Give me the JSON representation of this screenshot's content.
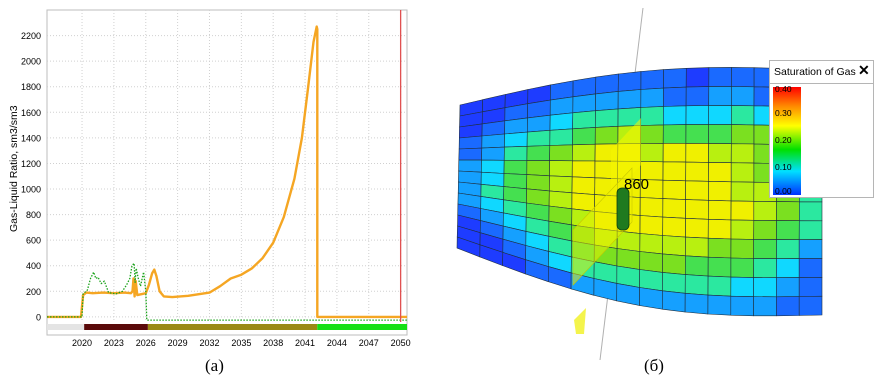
{
  "chart_data": {
    "type": "line",
    "ylabel": "Gas-Liquid Ratio, sm3/sm3",
    "xlabel": "",
    "title": "",
    "x_ticks": [
      "2020",
      "2023",
      "2026",
      "2029",
      "2032",
      "2035",
      "2038",
      "2041",
      "2044",
      "2047",
      "2050"
    ],
    "y_ticks": [
      "0",
      "200",
      "400",
      "600",
      "800",
      "1000",
      "1200",
      "1400",
      "1600",
      "1800",
      "2000",
      "2200"
    ],
    "xlim": [
      2016.7,
      2050.6
    ],
    "ylim": [
      -40,
      2400
    ],
    "grid": true,
    "series": [
      {
        "color": "#f5a623",
        "style": "solid",
        "points": [
          [
            2016.7,
            0
          ],
          [
            2019.9,
            0
          ],
          [
            2020.1,
            170
          ],
          [
            2020.4,
            190
          ],
          [
            2021,
            185
          ],
          [
            2022,
            190
          ],
          [
            2023,
            185
          ],
          [
            2024,
            190
          ],
          [
            2024.6,
            185
          ],
          [
            2024.75,
            200
          ],
          [
            2024.85,
            300
          ],
          [
            2024.95,
            160
          ],
          [
            2025.05,
            280
          ],
          [
            2025.2,
            170
          ],
          [
            2026,
            185
          ],
          [
            2026.3,
            250
          ],
          [
            2026.6,
            340
          ],
          [
            2026.8,
            370
          ],
          [
            2027,
            320
          ],
          [
            2027.3,
            200
          ],
          [
            2027.7,
            160
          ],
          [
            2028.5,
            155
          ],
          [
            2030,
            165
          ],
          [
            2032,
            190
          ],
          [
            2033,
            240
          ],
          [
            2034,
            300
          ],
          [
            2035,
            330
          ],
          [
            2036,
            380
          ],
          [
            2037,
            460
          ],
          [
            2038,
            580
          ],
          [
            2039,
            780
          ],
          [
            2040,
            1080
          ],
          [
            2040.7,
            1400
          ],
          [
            2041.3,
            1800
          ],
          [
            2041.8,
            2150
          ],
          [
            2042.1,
            2270
          ],
          [
            2042.15,
            2250
          ],
          [
            2042.15,
            0
          ],
          [
            2050.6,
            0
          ]
        ]
      },
      {
        "color": "#1aa31a",
        "style": "dotted",
        "points": [
          [
            2016.7,
            0
          ],
          [
            2020.0,
            0
          ],
          [
            2020.1,
            180
          ],
          [
            2020.5,
            210
          ],
          [
            2020.8,
            300
          ],
          [
            2021.1,
            350
          ],
          [
            2021.3,
            300
          ],
          [
            2021.5,
            310
          ],
          [
            2021.8,
            260
          ],
          [
            2022.1,
            280
          ],
          [
            2022.5,
            190
          ],
          [
            2023.2,
            180
          ],
          [
            2023.8,
            200
          ],
          [
            2024.2,
            250
          ],
          [
            2024.5,
            300
          ],
          [
            2024.7,
            400
          ],
          [
            2024.9,
            420
          ],
          [
            2025.0,
            270
          ],
          [
            2025.1,
            380
          ],
          [
            2025.3,
            300
          ],
          [
            2025.5,
            240
          ],
          [
            2025.8,
            350
          ],
          [
            2026.0,
            200
          ],
          [
            2026.1,
            -25
          ],
          [
            2050.6,
            -25
          ]
        ]
      }
    ],
    "timeline_segments": [
      {
        "from": 2016.7,
        "to": 2020.2,
        "color": "#e4e4e4"
      },
      {
        "from": 2020.2,
        "to": 2026.2,
        "color": "#5a0a0a"
      },
      {
        "from": 2026.2,
        "to": 2042.15,
        "color": "#9a8a14"
      },
      {
        "from": 2042.15,
        "to": 2050.6,
        "color": "#14e014"
      }
    ],
    "vertical_marker": {
      "x": 2050,
      "color": "#e05050"
    }
  },
  "legend": {
    "title": "Saturation of Gas",
    "close_symbol": "✕",
    "ticks": [
      "0.40",
      "0.30",
      "0.20",
      "0.10",
      "0.00"
    ]
  },
  "well_label": "860",
  "captions": {
    "a": "(a)",
    "b": "(б)"
  },
  "grid3d": {
    "palette": [
      "#1e3cff",
      "#1a6aff",
      "#15a0ff",
      "#10d8ff",
      "#2be8a0",
      "#45e050",
      "#7be020",
      "#b8f010",
      "#f0f000"
    ],
    "rows": [
      "0000111111011100",
      "0011222221122111",
      "0122344443334321",
      "1234456765556642",
      "1245678878877653",
      "2356788888887664",
      "2356788888887764",
      "2456788888888764",
      "2345678888887654",
      "1234567777766542",
      "0123456666555431",
      "0012344444443321",
      "0001122222222211"
    ]
  }
}
